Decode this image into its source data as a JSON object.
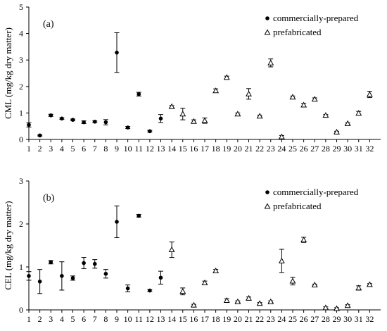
{
  "chart_data": [
    {
      "type": "scatter",
      "panel_label": "(a)",
      "ylabel": "CML (mg/kg dry matter)",
      "xlabel": "",
      "ylim": [
        0,
        5
      ],
      "yticks": [
        "0",
        "1",
        "2",
        "3",
        "4",
        "5"
      ],
      "x": [
        "1",
        "2",
        "3",
        "4",
        "5",
        "6",
        "7",
        "8",
        "9",
        "10",
        "11",
        "12",
        "13",
        "14",
        "15",
        "16",
        "17",
        "18",
        "19",
        "20",
        "21",
        "22",
        "23",
        "24",
        "25",
        "26",
        "27",
        "28",
        "29",
        "30",
        "31",
        "32"
      ],
      "legend_position": "top-right",
      "series": [
        {
          "name": "commercially-prepared",
          "marker": "filled-circle",
          "points": [
            {
              "x": 1,
              "y": 0.55,
              "err": 0.08
            },
            {
              "x": 2,
              "y": 0.15,
              "err": 0.02
            },
            {
              "x": 3,
              "y": 0.91,
              "err": 0.04
            },
            {
              "x": 4,
              "y": 0.79,
              "err": 0.03
            },
            {
              "x": 5,
              "y": 0.74,
              "err": 0.03
            },
            {
              "x": 6,
              "y": 0.65,
              "err": 0.05
            },
            {
              "x": 7,
              "y": 0.67,
              "err": 0.03
            },
            {
              "x": 8,
              "y": 0.65,
              "err": 0.1
            },
            {
              "x": 9,
              "y": 3.28,
              "err": 0.75
            },
            {
              "x": 10,
              "y": 0.45,
              "err": 0.04
            },
            {
              "x": 11,
              "y": 1.71,
              "err": 0.07
            },
            {
              "x": 12,
              "y": 0.31,
              "err": 0.03
            },
            {
              "x": 13,
              "y": 0.79,
              "err": 0.15
            }
          ]
        },
        {
          "name": "prefabricated",
          "marker": "open-triangle",
          "points": [
            {
              "x": 14,
              "y": 1.24,
              "err": 0.04
            },
            {
              "x": 15,
              "y": 0.96,
              "err": 0.22
            },
            {
              "x": 16,
              "y": 0.68,
              "err": 0.06
            },
            {
              "x": 17,
              "y": 0.71,
              "err": 0.1
            },
            {
              "x": 18,
              "y": 1.84,
              "err": 0.07
            },
            {
              "x": 19,
              "y": 2.34,
              "err": 0.05
            },
            {
              "x": 20,
              "y": 0.96,
              "err": 0.04
            },
            {
              "x": 21,
              "y": 1.72,
              "err": 0.2
            },
            {
              "x": 22,
              "y": 0.88,
              "err": 0.04
            },
            {
              "x": 23,
              "y": 2.89,
              "err": 0.15
            },
            {
              "x": 24,
              "y": 0.1,
              "err": 0.05
            },
            {
              "x": 25,
              "y": 1.6,
              "err": 0.04
            },
            {
              "x": 26,
              "y": 1.3,
              "err": 0.06
            },
            {
              "x": 27,
              "y": 1.52,
              "err": 0.05
            },
            {
              "x": 28,
              "y": 0.91,
              "err": 0.03
            },
            {
              "x": 29,
              "y": 0.28,
              "err": 0.03
            },
            {
              "x": 30,
              "y": 0.6,
              "err": 0.03
            },
            {
              "x": 31,
              "y": 0.99,
              "err": 0.07
            },
            {
              "x": 32,
              "y": 1.7,
              "err": 0.12
            }
          ]
        }
      ]
    },
    {
      "type": "scatter",
      "panel_label": "(b)",
      "ylabel": "CEL (mg/kg dry matter)",
      "xlabel": "",
      "ylim": [
        0,
        3
      ],
      "yticks": [
        "0",
        "1",
        "2",
        "3"
      ],
      "x": [
        "1",
        "2",
        "3",
        "4",
        "5",
        "6",
        "7",
        "8",
        "9",
        "10",
        "11",
        "12",
        "13",
        "14",
        "15",
        "16",
        "17",
        "18",
        "19",
        "20",
        "21",
        "22",
        "23",
        "24",
        "25",
        "26",
        "27",
        "28",
        "29",
        "30",
        "31",
        "32"
      ],
      "legend_position": "top-right",
      "series": [
        {
          "name": "commercially-prepared",
          "marker": "filled-circle",
          "points": [
            {
              "x": 1,
              "y": 0.79,
              "err": 0.1
            },
            {
              "x": 2,
              "y": 0.66,
              "err": 0.28
            },
            {
              "x": 3,
              "y": 1.11,
              "err": 0.04
            },
            {
              "x": 4,
              "y": 0.79,
              "err": 0.33
            },
            {
              "x": 5,
              "y": 0.74,
              "err": 0.05
            },
            {
              "x": 6,
              "y": 1.09,
              "err": 0.13
            },
            {
              "x": 7,
              "y": 1.07,
              "err": 0.1
            },
            {
              "x": 8,
              "y": 0.84,
              "err": 0.1
            },
            {
              "x": 9,
              "y": 2.05,
              "err": 0.37
            },
            {
              "x": 10,
              "y": 0.5,
              "err": 0.08
            },
            {
              "x": 11,
              "y": 2.19,
              "err": 0.03
            },
            {
              "x": 12,
              "y": 0.45,
              "err": 0.02
            },
            {
              "x": 13,
              "y": 0.75,
              "err": 0.15
            }
          ]
        },
        {
          "name": "prefabricated",
          "marker": "open-triangle",
          "points": [
            {
              "x": 14,
              "y": 1.4,
              "err": 0.18
            },
            {
              "x": 15,
              "y": 0.43,
              "err": 0.08
            },
            {
              "x": 16,
              "y": 0.11,
              "err": 0.02
            },
            {
              "x": 17,
              "y": 0.63,
              "err": 0.04
            },
            {
              "x": 18,
              "y": 0.91,
              "err": 0.03
            },
            {
              "x": 19,
              "y": 0.22,
              "err": 0.04
            },
            {
              "x": 20,
              "y": 0.19,
              "err": 0.02
            },
            {
              "x": 21,
              "y": 0.27,
              "err": 0.03
            },
            {
              "x": 22,
              "y": 0.15,
              "err": 0.02
            },
            {
              "x": 23,
              "y": 0.19,
              "err": 0.02
            },
            {
              "x": 24,
              "y": 1.14,
              "err": 0.27
            },
            {
              "x": 25,
              "y": 0.67,
              "err": 0.09
            },
            {
              "x": 26,
              "y": 1.63,
              "err": 0.06
            },
            {
              "x": 27,
              "y": 0.58,
              "err": 0.02
            },
            {
              "x": 28,
              "y": 0.05,
              "err": 0.02
            },
            {
              "x": 29,
              "y": 0.03,
              "err": 0.02
            },
            {
              "x": 30,
              "y": 0.1,
              "err": 0.02
            },
            {
              "x": 31,
              "y": 0.51,
              "err": 0.05
            },
            {
              "x": 32,
              "y": 0.59,
              "err": 0.02
            }
          ]
        }
      ]
    }
  ]
}
